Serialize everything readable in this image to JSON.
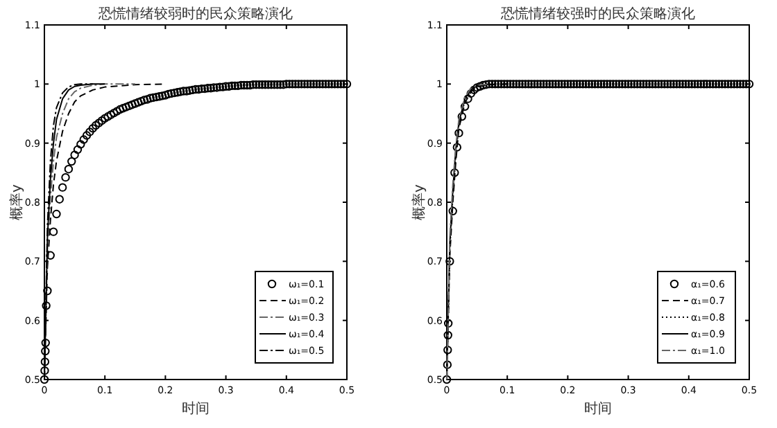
{
  "chart_data": [
    {
      "type": "line",
      "title": "恐慌情绪较弱时的民众策略演化",
      "xlabel": "时间",
      "ylabel": "概率y",
      "xlim": [
        0,
        0.5
      ],
      "ylim": [
        0.5,
        1.1
      ],
      "xticks": [
        0,
        0.1,
        0.2,
        0.3,
        0.4,
        0.5
      ],
      "yticks": [
        0.5,
        0.6,
        0.7,
        0.8,
        0.9,
        1,
        1.1
      ],
      "legend": "bottom right",
      "grid": false,
      "series": [
        {
          "name": "ω₁=0.1",
          "type": "scatter",
          "marker": "circle",
          "color": "#000000",
          "x": [
            0,
            0.0005,
            0.001,
            0.0015,
            0.002,
            0.003,
            0.005,
            0.01,
            0.015,
            0.02,
            0.025,
            0.03,
            0.035,
            0.04,
            0.045,
            0.05,
            0.055,
            0.06,
            0.065,
            0.07,
            0.075,
            0.08,
            0.085,
            0.09,
            0.095,
            0.1,
            0.105,
            0.11,
            0.115,
            0.12,
            0.125,
            0.13,
            0.135,
            0.14,
            0.145,
            0.15,
            0.155,
            0.16,
            0.165,
            0.17,
            0.175,
            0.18,
            0.185,
            0.19,
            0.195,
            0.2,
            0.205,
            0.21,
            0.215,
            0.22,
            0.225,
            0.23,
            0.235,
            0.24,
            0.245,
            0.25,
            0.255,
            0.26,
            0.265,
            0.27,
            0.275,
            0.28,
            0.285,
            0.29,
            0.295,
            0.3,
            0.305,
            0.31,
            0.315,
            0.32,
            0.325,
            0.33,
            0.335,
            0.34,
            0.345,
            0.35,
            0.355,
            0.36,
            0.365,
            0.37,
            0.375,
            0.38,
            0.385,
            0.39,
            0.395,
            0.4,
            0.405,
            0.41,
            0.415,
            0.42,
            0.425,
            0.43,
            0.435,
            0.44,
            0.445,
            0.45,
            0.455,
            0.46,
            0.465,
            0.47,
            0.475,
            0.48,
            0.485,
            0.49,
            0.495,
            0.5
          ],
          "values": [
            0.5,
            0.515,
            0.53,
            0.548,
            0.562,
            0.625,
            0.65,
            0.71,
            0.75,
            0.78,
            0.805,
            0.825,
            0.842,
            0.856,
            0.869,
            0.88,
            0.889,
            0.898,
            0.906,
            0.913,
            0.919,
            0.925,
            0.93,
            0.934,
            0.938,
            0.942,
            0.945,
            0.948,
            0.951,
            0.954,
            0.957,
            0.959,
            0.961,
            0.963,
            0.965,
            0.967,
            0.969,
            0.971,
            0.973,
            0.974,
            0.976,
            0.977,
            0.978,
            0.979,
            0.98,
            0.981,
            0.983,
            0.984,
            0.985,
            0.986,
            0.987,
            0.988,
            0.988,
            0.989,
            0.99,
            0.991,
            0.991,
            0.992,
            0.992,
            0.993,
            0.993,
            0.994,
            0.994,
            0.995,
            0.995,
            0.996,
            0.996,
            0.997,
            0.997,
            0.997,
            0.998,
            0.998,
            0.998,
            0.998,
            0.999,
            0.999,
            0.999,
            0.999,
            0.999,
            0.999,
            0.999,
            0.999,
            0.999,
            0.999,
            0.999,
            1,
            1,
            1,
            1,
            1,
            1,
            1,
            1,
            1,
            1,
            1,
            1,
            1,
            1,
            1,
            1,
            1,
            1,
            1,
            1,
            1
          ]
        },
        {
          "name": "ω₁=0.2",
          "type": "line",
          "line_style": "dashed",
          "color": "#000000",
          "x": [
            0,
            0.005,
            0.01,
            0.015,
            0.02,
            0.03,
            0.04,
            0.05,
            0.06,
            0.08,
            0.1,
            0.15,
            0.2
          ],
          "values": [
            0.5,
            0.69,
            0.77,
            0.83,
            0.87,
            0.92,
            0.95,
            0.97,
            0.98,
            0.99,
            0.995,
            0.999,
            1
          ]
        },
        {
          "name": "ω₁=0.3",
          "type": "line",
          "line_style": "dashdot",
          "color": "#666666",
          "x": [
            0,
            0.005,
            0.01,
            0.015,
            0.02,
            0.03,
            0.04,
            0.05,
            0.06,
            0.08,
            0.1,
            0.15
          ],
          "values": [
            0.5,
            0.72,
            0.81,
            0.87,
            0.91,
            0.95,
            0.975,
            0.987,
            0.993,
            0.998,
            1,
            1
          ]
        },
        {
          "name": "ω₁=0.4",
          "type": "line",
          "line_style": "solid",
          "color": "#000000",
          "x": [
            0,
            0.005,
            0.01,
            0.015,
            0.02,
            0.03,
            0.04,
            0.05,
            0.06,
            0.08,
            0.1
          ],
          "values": [
            0.5,
            0.74,
            0.84,
            0.9,
            0.94,
            0.975,
            0.99,
            0.996,
            0.998,
            1,
            1
          ]
        },
        {
          "name": "ω₁=0.5",
          "type": "line",
          "line_style": "dashdot",
          "color": "#000000",
          "x": [
            0,
            0.005,
            0.01,
            0.015,
            0.02,
            0.03,
            0.04,
            0.05,
            0.06,
            0.08
          ],
          "values": [
            0.5,
            0.76,
            0.87,
            0.93,
            0.96,
            0.985,
            0.995,
            0.999,
            1,
            1
          ]
        }
      ]
    },
    {
      "type": "line",
      "title": "恐慌情绪较强时的民众策略演化",
      "xlabel": "时间",
      "ylabel": "概率y",
      "xlim": [
        0,
        0.5
      ],
      "ylim": [
        0.5,
        1.1
      ],
      "xticks": [
        0,
        0.1,
        0.2,
        0.3,
        0.4,
        0.5
      ],
      "yticks": [
        0.5,
        0.6,
        0.7,
        0.8,
        0.9,
        1,
        1.1
      ],
      "legend": "bottom right",
      "grid": false,
      "series": [
        {
          "name": "α₁=0.6",
          "type": "scatter",
          "marker": "circle",
          "color": "#000000",
          "x": [
            0,
            0.001,
            0.0015,
            0.002,
            0.0025,
            0.005,
            0.01,
            0.013,
            0.017,
            0.02,
            0.025,
            0.03,
            0.035,
            0.04,
            0.045,
            0.05,
            0.055,
            0.06,
            0.065,
            0.07,
            0.075,
            0.08,
            0.085,
            0.09,
            0.095,
            0.1,
            0.105,
            0.11,
            0.115,
            0.12,
            0.125,
            0.13,
            0.135,
            0.14,
            0.145,
            0.15,
            0.155,
            0.16,
            0.165,
            0.17,
            0.175,
            0.18,
            0.185,
            0.19,
            0.195,
            0.2,
            0.205,
            0.21,
            0.215,
            0.22,
            0.225,
            0.23,
            0.235,
            0.24,
            0.245,
            0.25,
            0.255,
            0.26,
            0.265,
            0.27,
            0.275,
            0.28,
            0.285,
            0.29,
            0.295,
            0.3,
            0.305,
            0.31,
            0.315,
            0.32,
            0.325,
            0.33,
            0.335,
            0.34,
            0.345,
            0.35,
            0.355,
            0.36,
            0.365,
            0.37,
            0.375,
            0.38,
            0.385,
            0.39,
            0.395,
            0.4,
            0.405,
            0.41,
            0.415,
            0.42,
            0.425,
            0.43,
            0.435,
            0.44,
            0.445,
            0.45,
            0.455,
            0.46,
            0.465,
            0.47,
            0.475,
            0.48,
            0.485,
            0.49,
            0.495,
            0.5
          ],
          "values": [
            0.5,
            0.525,
            0.55,
            0.575,
            0.595,
            0.7,
            0.785,
            0.85,
            0.893,
            0.917,
            0.945,
            0.962,
            0.975,
            0.984,
            0.99,
            0.994,
            0.996,
            0.998,
            0.999,
            1,
            1,
            1,
            1,
            1,
            1,
            1,
            1,
            1,
            1,
            1,
            1,
            1,
            1,
            1,
            1,
            1,
            1,
            1,
            1,
            1,
            1,
            1,
            1,
            1,
            1,
            1,
            1,
            1,
            1,
            1,
            1,
            1,
            1,
            1,
            1,
            1,
            1,
            1,
            1,
            1,
            1,
            1,
            1,
            1,
            1,
            1,
            1,
            1,
            1,
            1,
            1,
            1,
            1,
            1,
            1,
            1,
            1,
            1,
            1,
            1,
            1,
            1,
            1,
            1,
            1,
            1,
            1,
            1,
            1,
            1,
            1,
            1,
            1,
            1,
            1,
            1,
            1,
            1,
            1,
            1,
            1,
            1,
            1,
            1,
            1,
            1
          ]
        },
        {
          "name": "α₁=0.7",
          "type": "line",
          "line_style": "dashed",
          "color": "#000000",
          "x": [
            0,
            0.005,
            0.01,
            0.015,
            0.02,
            0.03,
            0.04,
            0.05,
            0.07,
            0.1
          ],
          "values": [
            0.5,
            0.71,
            0.8,
            0.87,
            0.925,
            0.968,
            0.987,
            0.995,
            0.999,
            1
          ]
        },
        {
          "name": "α₁=0.8",
          "type": "line",
          "line_style": "dotted",
          "color": "#000000",
          "x": [
            0,
            0.005,
            0.01,
            0.015,
            0.02,
            0.03,
            0.04,
            0.05,
            0.07
          ],
          "values": [
            0.5,
            0.72,
            0.81,
            0.88,
            0.93,
            0.972,
            0.989,
            0.996,
            1
          ]
        },
        {
          "name": "α₁=0.9",
          "type": "line",
          "line_style": "solid",
          "color": "#000000",
          "x": [
            0,
            0.005,
            0.01,
            0.015,
            0.02,
            0.03,
            0.04,
            0.05,
            0.07
          ],
          "values": [
            0.5,
            0.73,
            0.82,
            0.89,
            0.935,
            0.975,
            0.991,
            0.997,
            1
          ]
        },
        {
          "name": "α₁=1.0",
          "type": "line",
          "line_style": "dashdot",
          "color": "#666666",
          "x": [
            0,
            0.005,
            0.01,
            0.015,
            0.02,
            0.03,
            0.04,
            0.05,
            0.07
          ],
          "values": [
            0.5,
            0.74,
            0.83,
            0.895,
            0.94,
            0.978,
            0.993,
            0.998,
            1
          ]
        }
      ]
    }
  ]
}
